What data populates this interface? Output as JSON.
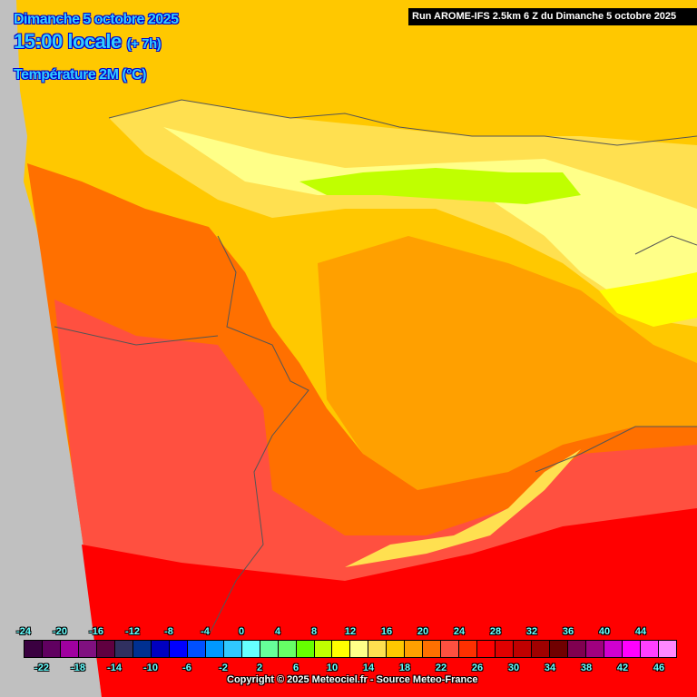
{
  "header": {
    "date": "Dimanche 5 octobre 2025",
    "time": "15:00 locale",
    "lead": "(+ 7h)",
    "parameter": "Température 2M (°C)",
    "run": "Run AROME-IFS 2.5km 6 Z du Dimanche 5 octobre 2025"
  },
  "legend": {
    "top_labels": [
      "-24",
      "-20",
      "-16",
      "-12",
      "-8",
      "-4",
      "0",
      "4",
      "8",
      "12",
      "16",
      "20",
      "24",
      "28",
      "32",
      "36",
      "40",
      "44"
    ],
    "bottom_labels": [
      "-22",
      "-18",
      "-14",
      "-10",
      "-6",
      "-2",
      "2",
      "6",
      "10",
      "14",
      "18",
      "22",
      "26",
      "30",
      "34",
      "38",
      "42",
      "46"
    ],
    "colors": [
      "#3a0040",
      "#600060",
      "#a000a0",
      "#801080",
      "#600040",
      "#303060",
      "#003090",
      "#0000c0",
      "#0000ff",
      "#0050ff",
      "#0098ff",
      "#30c8ff",
      "#66ffff",
      "#66ff99",
      "#66ff66",
      "#66ff00",
      "#c0ff00",
      "#ffff00",
      "#ffff88",
      "#ffe050",
      "#ffc800",
      "#ffa000",
      "#ff7000",
      "#ff5040",
      "#ff3000",
      "#ff0000",
      "#e00000",
      "#c00000",
      "#a00000",
      "#700000",
      "#800050",
      "#a00080",
      "#d000d0",
      "#ff00ff",
      "#ff40ff",
      "#ff88ff"
    ]
  },
  "map": {
    "sea_color": "#c0c0c0",
    "border_color": "#555555"
  },
  "footer": {
    "copyright": "Copyright © 2025 Meteociel.fr - Source Meteo-France"
  }
}
